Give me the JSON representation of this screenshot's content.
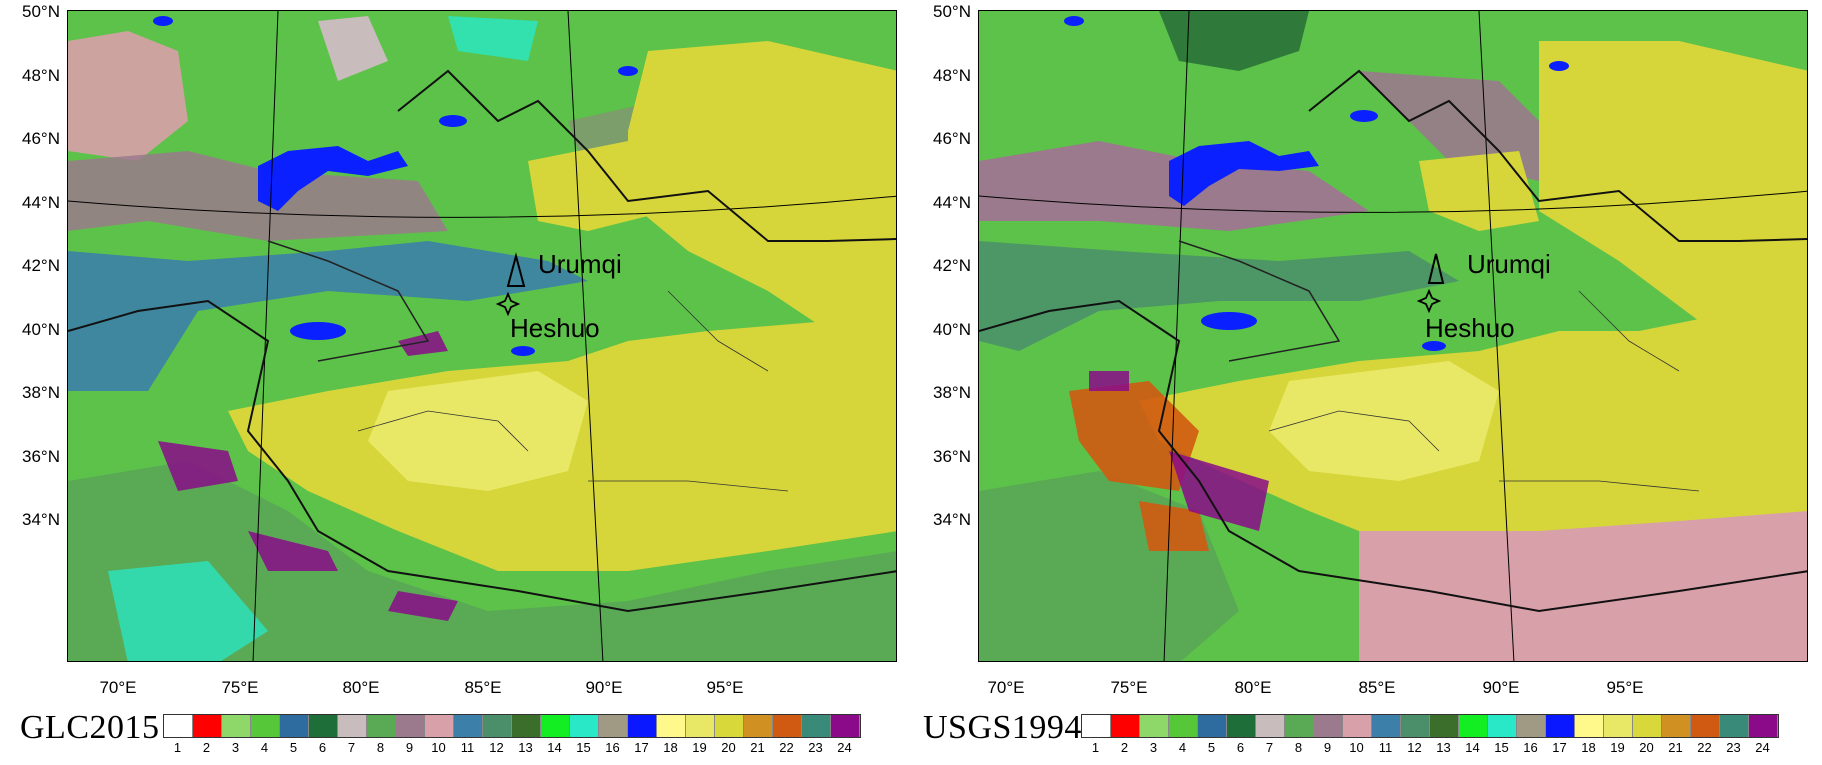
{
  "maps": [
    {
      "id": "left",
      "dataset_label": "GLC2015",
      "places": {
        "urumqi": "Urumqi",
        "heshuo": "Heshuo"
      },
      "lat_ticks": [
        "50°N",
        "48°N",
        "46°N",
        "44°N",
        "42°N",
        "40°N",
        "38°N",
        "36°N",
        "34°N"
      ],
      "lon_ticks": [
        "70°E",
        "75°E",
        "80°E",
        "85°E",
        "90°E",
        "95°E"
      ]
    },
    {
      "id": "right",
      "dataset_label": "USGS1994",
      "places": {
        "urumqi": "Urumqi",
        "heshuo": "Heshuo"
      },
      "lat_ticks": [
        "50°N",
        "48°N",
        "46°N",
        "44°N",
        "42°N",
        "40°N",
        "38°N",
        "36°N",
        "34°N"
      ],
      "lon_ticks": [
        "70°E",
        "75°E",
        "80°E",
        "85°E",
        "90°E",
        "95°E"
      ]
    }
  ],
  "legend": {
    "classes": [
      "1",
      "2",
      "3",
      "4",
      "5",
      "6",
      "7",
      "8",
      "9",
      "10",
      "11",
      "12",
      "13",
      "14",
      "15",
      "16",
      "17",
      "18",
      "19",
      "20",
      "21",
      "22",
      "23",
      "24"
    ],
    "colors": [
      "#ffffff",
      "#ff0000",
      "#8ed86a",
      "#55c738",
      "#2e6b9e",
      "#1e6e3a",
      "#c8bcbc",
      "#5aaa55",
      "#9a7a8c",
      "#d8a0a8",
      "#3c7fa8",
      "#4a8e6a",
      "#3a6e2a",
      "#12ee22",
      "#28e8c8",
      "#a09a84",
      "#0a18ff",
      "#fff88a",
      "#e8e866",
      "#d8d83a",
      "#d09022",
      "#d05a12",
      "#3a8a7a",
      "#8a0a8a"
    ]
  },
  "palette": {
    "base_green": "#5cc249",
    "desert_yellow": "#d6d63a",
    "water_blue": "#0a20ff",
    "mauve": "#9a7a8c",
    "pink": "#d8a0a8",
    "shrub_blue": "#3c7fa8",
    "forest_dark": "#2f7a3a",
    "purple": "#8a0a8a",
    "orange": "#d05a12"
  }
}
